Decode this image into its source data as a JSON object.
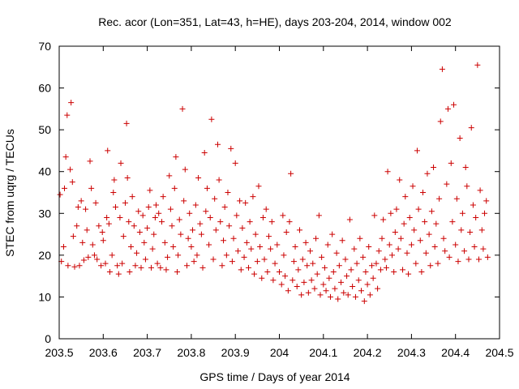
{
  "chart_data": {
    "type": "scatter",
    "title": "Rec. acor (Lon=351, Lat=43, h=HE), days 203-204, 2014, window 002",
    "xlabel": "GPS time / Days of year 2014",
    "ylabel": "STEC from uqrg / TECUs",
    "xlim": [
      203.5,
      204.5
    ],
    "ylim": [
      0,
      70
    ],
    "xticks": [
      "203.5",
      "203.6",
      "203.7",
      "203.8",
      "203.9",
      "204",
      "204.1",
      "204.2",
      "204.3",
      "204.4",
      "204.5"
    ],
    "yticks": [
      "0",
      "10",
      "20",
      "30",
      "40",
      "50",
      "60",
      "70"
    ],
    "grid": false,
    "marker": "+",
    "color": "#cc0000",
    "series": [
      {
        "points": [
          [
            203.502,
            34.5
          ],
          [
            203.505,
            18.5
          ],
          [
            203.51,
            22
          ],
          [
            203.512,
            36
          ],
          [
            203.515,
            43.5
          ],
          [
            203.518,
            53.5
          ],
          [
            203.52,
            17.5
          ],
          [
            203.525,
            40.5
          ],
          [
            203.527,
            56.5
          ],
          [
            203.53,
            37.5
          ],
          [
            203.532,
            24.5
          ],
          [
            203.535,
            17.2
          ],
          [
            203.54,
            27
          ],
          [
            203.543,
            31.5
          ],
          [
            203.546,
            17.5
          ],
          [
            203.55,
            33
          ],
          [
            203.553,
            23
          ],
          [
            203.556,
            18.8
          ],
          [
            203.56,
            31
          ],
          [
            203.563,
            26
          ],
          [
            203.566,
            19.5
          ],
          [
            203.57,
            42.5
          ],
          [
            203.573,
            36
          ],
          [
            203.576,
            22.5
          ],
          [
            203.58,
            20
          ],
          [
            203.583,
            32.5
          ],
          [
            203.586,
            19
          ],
          [
            203.59,
            27
          ],
          [
            203.595,
            17.5
          ],
          [
            203.598,
            25.5
          ],
          [
            203.6,
            23.5
          ],
          [
            203.605,
            18
          ],
          [
            203.608,
            29
          ],
          [
            203.61,
            45
          ],
          [
            203.613,
            27.5
          ],
          [
            203.615,
            16
          ],
          [
            203.62,
            20
          ],
          [
            203.623,
            35
          ],
          [
            203.625,
            38
          ],
          [
            203.628,
            31.5
          ],
          [
            203.632,
            17.5
          ],
          [
            203.635,
            15.5
          ],
          [
            203.638,
            29
          ],
          [
            203.64,
            42
          ],
          [
            203.643,
            18
          ],
          [
            203.646,
            24.5
          ],
          [
            203.65,
            32.5
          ],
          [
            203.653,
            51.5
          ],
          [
            203.655,
            38.5
          ],
          [
            203.658,
            28
          ],
          [
            203.66,
            16
          ],
          [
            203.663,
            22
          ],
          [
            203.666,
            34
          ],
          [
            203.67,
            27
          ],
          [
            203.673,
            17.5
          ],
          [
            203.676,
            20.5
          ],
          [
            203.68,
            30.5
          ],
          [
            203.683,
            25.5
          ],
          [
            203.686,
            17
          ],
          [
            203.69,
            29.5
          ],
          [
            203.693,
            23
          ],
          [
            203.696,
            19
          ],
          [
            203.7,
            26.5
          ],
          [
            203.703,
            31.5
          ],
          [
            203.706,
            35.5
          ],
          [
            203.709,
            17
          ],
          [
            203.712,
            21.5
          ],
          [
            203.715,
            25
          ],
          [
            203.718,
            29
          ],
          [
            203.72,
            32
          ],
          [
            203.723,
            18
          ],
          [
            203.726,
            30
          ],
          [
            203.73,
            17
          ],
          [
            203.733,
            28
          ],
          [
            203.736,
            34
          ],
          [
            203.74,
            23
          ],
          [
            203.743,
            16.5
          ],
          [
            203.746,
            19.5
          ],
          [
            203.75,
            39
          ],
          [
            203.753,
            31
          ],
          [
            203.756,
            27
          ],
          [
            203.759,
            22
          ],
          [
            203.762,
            36
          ],
          [
            203.765,
            43.5
          ],
          [
            203.768,
            16
          ],
          [
            203.77,
            20
          ],
          [
            203.773,
            28.5
          ],
          [
            203.776,
            25
          ],
          [
            203.78,
            55
          ],
          [
            203.783,
            33
          ],
          [
            203.786,
            40.5
          ],
          [
            203.79,
            17.5
          ],
          [
            203.793,
            24
          ],
          [
            203.796,
            30
          ],
          [
            203.8,
            22
          ],
          [
            203.803,
            26
          ],
          [
            203.806,
            18.5
          ],
          [
            203.81,
            32
          ],
          [
            203.813,
            20
          ],
          [
            203.816,
            38.5
          ],
          [
            203.82,
            27.5
          ],
          [
            203.823,
            25
          ],
          [
            203.826,
            17
          ],
          [
            203.83,
            44.5
          ],
          [
            203.833,
            30.5
          ],
          [
            203.836,
            36
          ],
          [
            203.84,
            22.5
          ],
          [
            203.843,
            29
          ],
          [
            203.846,
            52.5
          ],
          [
            203.85,
            19
          ],
          [
            203.853,
            33.5
          ],
          [
            203.856,
            26
          ],
          [
            203.86,
            46.5
          ],
          [
            203.863,
            38
          ],
          [
            203.866,
            28
          ],
          [
            203.87,
            17.5
          ],
          [
            203.873,
            23.5
          ],
          [
            203.876,
            31.5
          ],
          [
            203.88,
            20
          ],
          [
            203.883,
            35
          ],
          [
            203.886,
            27
          ],
          [
            203.89,
            45.5
          ],
          [
            203.893,
            18.5
          ],
          [
            203.896,
            24
          ],
          [
            203.9,
            42
          ],
          [
            203.903,
            29.5
          ],
          [
            203.906,
            21
          ],
          [
            203.91,
            33
          ],
          [
            203.913,
            16.5
          ],
          [
            203.916,
            26.5
          ],
          [
            203.92,
            19.5
          ],
          [
            203.923,
            32.5
          ],
          [
            203.926,
            23
          ],
          [
            203.93,
            17
          ],
          [
            203.933,
            28
          ],
          [
            203.936,
            21.5
          ],
          [
            203.94,
            34
          ],
          [
            203.943,
            15.5
          ],
          [
            203.946,
            25
          ],
          [
            203.95,
            18.5
          ],
          [
            203.953,
            36.5
          ],
          [
            203.956,
            22
          ],
          [
            203.96,
            14.5
          ],
          [
            203.963,
            29
          ],
          [
            203.966,
            19
          ],
          [
            203.97,
            31
          ],
          [
            203.973,
            16
          ],
          [
            203.976,
            24.5
          ],
          [
            203.98,
            21.5
          ],
          [
            203.983,
            28
          ],
          [
            203.986,
            14
          ],
          [
            203.99,
            18
          ],
          [
            203.995,
            22.5
          ],
          [
            204.0,
            16
          ],
          [
            204.005,
            13
          ],
          [
            204.008,
            29.5
          ],
          [
            204.01,
            20
          ],
          [
            204.013,
            15
          ],
          [
            204.016,
            25.5
          ],
          [
            204.02,
            11.5
          ],
          [
            204.023,
            28
          ],
          [
            204.026,
            39.5
          ],
          [
            204.03,
            14
          ],
          [
            204.033,
            18.5
          ],
          [
            204.036,
            22
          ],
          [
            204.04,
            12.5
          ],
          [
            204.043,
            16.5
          ],
          [
            204.046,
            26
          ],
          [
            204.05,
            10.5
          ],
          [
            204.053,
            19
          ],
          [
            204.056,
            13.5
          ],
          [
            204.06,
            23
          ],
          [
            204.063,
            17.5
          ],
          [
            204.066,
            11
          ],
          [
            204.07,
            21
          ],
          [
            204.073,
            14
          ],
          [
            204.076,
            18
          ],
          [
            204.08,
            12
          ],
          [
            204.083,
            24
          ],
          [
            204.086,
            15.5
          ],
          [
            204.09,
            29.5
          ],
          [
            204.093,
            10.5
          ],
          [
            204.096,
            19.5
          ],
          [
            204.1,
            13
          ],
          [
            204.103,
            17
          ],
          [
            204.106,
            11.5
          ],
          [
            204.11,
            22.5
          ],
          [
            204.113,
            14.5
          ],
          [
            204.116,
            10
          ],
          [
            204.12,
            25
          ],
          [
            204.123,
            16
          ],
          [
            204.126,
            12
          ],
          [
            204.13,
            20.5
          ],
          [
            204.133,
            9.5
          ],
          [
            204.136,
            17.5
          ],
          [
            204.14,
            13.5
          ],
          [
            204.143,
            23.5
          ],
          [
            204.146,
            11
          ],
          [
            204.15,
            19
          ],
          [
            204.153,
            15
          ],
          [
            204.156,
            10.5
          ],
          [
            204.16,
            28.5
          ],
          [
            204.163,
            16.5
          ],
          [
            204.166,
            12.5
          ],
          [
            204.17,
            21.5
          ],
          [
            204.173,
            10
          ],
          [
            204.176,
            18
          ],
          [
            204.18,
            14
          ],
          [
            204.183,
            24
          ],
          [
            204.186,
            11.5
          ],
          [
            204.19,
            19.5
          ],
          [
            204.193,
            9
          ],
          [
            204.196,
            16
          ],
          [
            204.2,
            13
          ],
          [
            204.203,
            22
          ],
          [
            204.206,
            10.5
          ],
          [
            204.21,
            17.5
          ],
          [
            204.213,
            14.5
          ],
          [
            204.216,
            29.5
          ],
          [
            204.22,
            18
          ],
          [
            204.223,
            12
          ],
          [
            204.226,
            21
          ],
          [
            204.23,
            16.5
          ],
          [
            204.233,
            24
          ],
          [
            204.236,
            28.5
          ],
          [
            204.24,
            19
          ],
          [
            204.243,
            17
          ],
          [
            204.246,
            40
          ],
          [
            204.25,
            22.5
          ],
          [
            204.253,
            30
          ],
          [
            204.256,
            20
          ],
          [
            204.26,
            16
          ],
          [
            204.263,
            25.5
          ],
          [
            204.266,
            31
          ],
          [
            204.27,
            21.5
          ],
          [
            204.273,
            38
          ],
          [
            204.276,
            24
          ],
          [
            204.28,
            16.5
          ],
          [
            204.283,
            27.5
          ],
          [
            204.286,
            34
          ],
          [
            204.29,
            20.5
          ],
          [
            204.293,
            15.5
          ],
          [
            204.296,
            29
          ],
          [
            204.3,
            22.5
          ],
          [
            204.303,
            36.5
          ],
          [
            204.306,
            26
          ],
          [
            204.31,
            18
          ],
          [
            204.313,
            45
          ],
          [
            204.316,
            31
          ],
          [
            204.32,
            23.5
          ],
          [
            204.323,
            16
          ],
          [
            204.326,
            35
          ],
          [
            204.33,
            28
          ],
          [
            204.333,
            20.5
          ],
          [
            204.336,
            39.5
          ],
          [
            204.34,
            25
          ],
          [
            204.343,
            17.5
          ],
          [
            204.346,
            30.5
          ],
          [
            204.35,
            41
          ],
          [
            204.353,
            22
          ],
          [
            204.356,
            27.5
          ],
          [
            204.36,
            18
          ],
          [
            204.363,
            33.5
          ],
          [
            204.366,
            52
          ],
          [
            204.37,
            64.5
          ],
          [
            204.373,
            24
          ],
          [
            204.376,
            21
          ],
          [
            204.38,
            37
          ],
          [
            204.383,
            55
          ],
          [
            204.386,
            19.5
          ],
          [
            204.39,
            42
          ],
          [
            204.393,
            28
          ],
          [
            204.396,
            56
          ],
          [
            204.4,
            22.5
          ],
          [
            204.403,
            33.5
          ],
          [
            204.406,
            18.5
          ],
          [
            204.41,
            48
          ],
          [
            204.413,
            26
          ],
          [
            204.416,
            30
          ],
          [
            204.42,
            21
          ],
          [
            204.423,
            41
          ],
          [
            204.426,
            36.5
          ],
          [
            204.43,
            19
          ],
          [
            204.433,
            25.5
          ],
          [
            204.436,
            50.5
          ],
          [
            204.44,
            32
          ],
          [
            204.443,
            22
          ],
          [
            204.446,
            29
          ],
          [
            204.45,
            65.5
          ],
          [
            204.453,
            19
          ],
          [
            204.456,
            35.5
          ],
          [
            204.46,
            26
          ],
          [
            204.463,
            21.5
          ],
          [
            204.466,
            30
          ],
          [
            204.47,
            33
          ],
          [
            204.473,
            19.5
          ]
        ]
      }
    ]
  }
}
